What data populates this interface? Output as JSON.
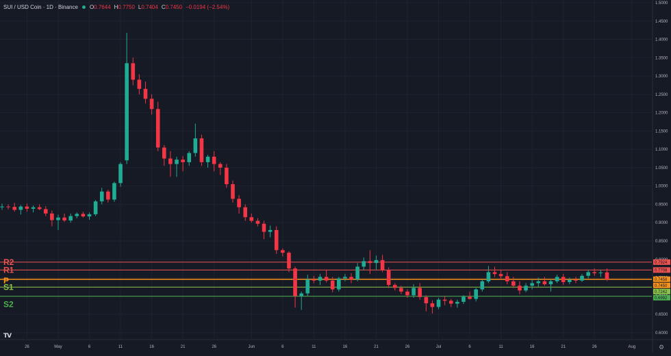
{
  "header": {
    "symbol": "SUI / USD Coin · 1D · Binance",
    "open_label": "O",
    "open": "0.7644",
    "high_label": "H",
    "high": "0.7750",
    "low_label": "L",
    "low": "0.7404",
    "close_label": "C",
    "close": "0.7450",
    "change": "−0.0194 (−2.54%)",
    "status_color": "#22ab94"
  },
  "colors": {
    "up": "#22ab94",
    "down": "#f23645",
    "background": "#161a25",
    "grid": "#1f2330",
    "axis_text": "#b2b5be"
  },
  "logo": {
    "text": "TV",
    "icon": "tradingview-logo-icon"
  },
  "settings_icon": "gear-icon",
  "chart_data": {
    "type": "candlestick",
    "y_axis": {
      "ticks": [
        "1.5000",
        "1.4500",
        "1.4000",
        "1.3500",
        "1.3000",
        "1.2500",
        "1.2000",
        "1.1500",
        "1.1000",
        "1.0500",
        "1.0000",
        "0.9500",
        "0.9000",
        "0.8500",
        "0.8000",
        "0.7500",
        "0.7000",
        "0.6500",
        "0.6000"
      ],
      "tick_values": [
        1.5,
        1.45,
        1.4,
        1.35,
        1.3,
        1.25,
        1.2,
        1.15,
        1.1,
        1.05,
        1.0,
        0.95,
        0.9,
        0.85,
        0.8,
        0.75,
        0.7,
        0.65,
        0.6
      ],
      "range": [
        0.596,
        1.5
      ],
      "side": "right"
    },
    "x_axis": {
      "ticks": [
        {
          "label": "26",
          "date": "2024-04-26"
        },
        {
          "label": "May",
          "date": "2024-05-01"
        },
        {
          "label": "6",
          "date": "2024-05-06"
        },
        {
          "label": "11",
          "date": "2024-05-11"
        },
        {
          "label": "16",
          "date": "2024-05-16"
        },
        {
          "label": "21",
          "date": "2024-05-21"
        },
        {
          "label": "26",
          "date": "2024-05-26"
        },
        {
          "label": "Jun",
          "date": "2024-06-01"
        },
        {
          "label": "6",
          "date": "2024-06-06"
        },
        {
          "label": "11",
          "date": "2024-06-11"
        },
        {
          "label": "16",
          "date": "2024-06-16"
        },
        {
          "label": "21",
          "date": "2024-06-21"
        },
        {
          "label": "26",
          "date": "2024-06-26"
        },
        {
          "label": "Jul",
          "date": "2024-07-01"
        },
        {
          "label": "6",
          "date": "2024-07-06"
        },
        {
          "label": "11",
          "date": "2024-07-11"
        },
        {
          "label": "16",
          "date": "2024-07-16"
        },
        {
          "label": "21",
          "date": "2024-07-21"
        },
        {
          "label": "26",
          "date": "2024-07-26"
        },
        {
          "label": "Aug",
          "date": "2024-08-01"
        }
      ],
      "range": [
        "2024-04-22",
        "2024-08-02"
      ]
    },
    "grid": true,
    "candles": [
      {
        "date": "2024-04-22",
        "o": 0.942,
        "h": 0.952,
        "l": 0.935,
        "c": 0.944
      },
      {
        "date": "2024-04-23",
        "o": 0.944,
        "h": 0.95,
        "l": 0.936,
        "c": 0.943
      },
      {
        "date": "2024-04-24",
        "o": 0.943,
        "h": 0.954,
        "l": 0.93,
        "c": 0.935
      },
      {
        "date": "2024-04-25",
        "o": 0.935,
        "h": 0.948,
        "l": 0.922,
        "c": 0.944
      },
      {
        "date": "2024-04-26",
        "o": 0.944,
        "h": 0.952,
        "l": 0.93,
        "c": 0.938
      },
      {
        "date": "2024-04-27",
        "o": 0.938,
        "h": 0.947,
        "l": 0.928,
        "c": 0.942
      },
      {
        "date": "2024-04-28",
        "o": 0.942,
        "h": 0.95,
        "l": 0.934,
        "c": 0.937
      },
      {
        "date": "2024-04-29",
        "o": 0.937,
        "h": 0.945,
        "l": 0.918,
        "c": 0.925
      },
      {
        "date": "2024-04-30",
        "o": 0.925,
        "h": 0.933,
        "l": 0.89,
        "c": 0.907
      },
      {
        "date": "2024-05-01",
        "o": 0.907,
        "h": 0.922,
        "l": 0.88,
        "c": 0.914
      },
      {
        "date": "2024-05-02",
        "o": 0.914,
        "h": 0.925,
        "l": 0.902,
        "c": 0.906
      },
      {
        "date": "2024-05-03",
        "o": 0.906,
        "h": 0.925,
        "l": 0.9,
        "c": 0.918
      },
      {
        "date": "2024-05-04",
        "o": 0.918,
        "h": 0.928,
        "l": 0.912,
        "c": 0.924
      },
      {
        "date": "2024-05-05",
        "o": 0.924,
        "h": 0.93,
        "l": 0.914,
        "c": 0.917
      },
      {
        "date": "2024-05-06",
        "o": 0.917,
        "h": 0.928,
        "l": 0.908,
        "c": 0.923
      },
      {
        "date": "2024-05-07",
        "o": 0.923,
        "h": 0.962,
        "l": 0.918,
        "c": 0.958
      },
      {
        "date": "2024-05-08",
        "o": 0.958,
        "h": 0.995,
        "l": 0.95,
        "c": 0.985
      },
      {
        "date": "2024-05-09",
        "o": 0.985,
        "h": 0.99,
        "l": 0.955,
        "c": 0.963
      },
      {
        "date": "2024-05-10",
        "o": 0.963,
        "h": 1.012,
        "l": 0.957,
        "c": 1.008
      },
      {
        "date": "2024-05-11",
        "o": 1.008,
        "h": 1.065,
        "l": 0.998,
        "c": 1.06
      },
      {
        "date": "2024-05-12",
        "o": 1.07,
        "h": 1.418,
        "l": 1.06,
        "c": 1.335
      },
      {
        "date": "2024-05-13",
        "o": 1.335,
        "h": 1.35,
        "l": 1.275,
        "c": 1.29
      },
      {
        "date": "2024-05-14",
        "o": 1.29,
        "h": 1.305,
        "l": 1.25,
        "c": 1.265
      },
      {
        "date": "2024-05-15",
        "o": 1.265,
        "h": 1.285,
        "l": 1.225,
        "c": 1.238
      },
      {
        "date": "2024-05-16",
        "o": 1.238,
        "h": 1.25,
        "l": 1.195,
        "c": 1.21
      },
      {
        "date": "2024-05-17",
        "o": 1.21,
        "h": 1.23,
        "l": 1.095,
        "c": 1.105
      },
      {
        "date": "2024-05-18",
        "o": 1.105,
        "h": 1.112,
        "l": 1.055,
        "c": 1.075
      },
      {
        "date": "2024-05-19",
        "o": 1.075,
        "h": 1.095,
        "l": 1.025,
        "c": 1.06
      },
      {
        "date": "2024-05-20",
        "o": 1.06,
        "h": 1.08,
        "l": 1.025,
        "c": 1.072
      },
      {
        "date": "2024-05-21",
        "o": 1.072,
        "h": 1.082,
        "l": 1.04,
        "c": 1.065
      },
      {
        "date": "2024-05-22",
        "o": 1.065,
        "h": 1.095,
        "l": 1.055,
        "c": 1.09
      },
      {
        "date": "2024-05-23",
        "o": 1.09,
        "h": 1.17,
        "l": 1.08,
        "c": 1.13
      },
      {
        "date": "2024-05-24",
        "o": 1.13,
        "h": 1.14,
        "l": 1.055,
        "c": 1.065
      },
      {
        "date": "2024-05-25",
        "o": 1.065,
        "h": 1.085,
        "l": 1.05,
        "c": 1.08
      },
      {
        "date": "2024-05-26",
        "o": 1.08,
        "h": 1.095,
        "l": 1.04,
        "c": 1.06
      },
      {
        "date": "2024-05-27",
        "o": 1.06,
        "h": 1.065,
        "l": 1.03,
        "c": 1.05
      },
      {
        "date": "2024-05-28",
        "o": 1.05,
        "h": 1.06,
        "l": 0.995,
        "c": 1.005
      },
      {
        "date": "2024-05-29",
        "o": 1.005,
        "h": 1.015,
        "l": 0.955,
        "c": 0.965
      },
      {
        "date": "2024-05-30",
        "o": 0.965,
        "h": 0.975,
        "l": 0.925,
        "c": 0.942
      },
      {
        "date": "2024-05-31",
        "o": 0.942,
        "h": 0.95,
        "l": 0.905,
        "c": 0.915
      },
      {
        "date": "2024-06-01",
        "o": 0.915,
        "h": 0.925,
        "l": 0.9,
        "c": 0.905
      },
      {
        "date": "2024-06-02",
        "o": 0.905,
        "h": 0.912,
        "l": 0.89,
        "c": 0.897
      },
      {
        "date": "2024-06-03",
        "o": 0.897,
        "h": 0.905,
        "l": 0.855,
        "c": 0.875
      },
      {
        "date": "2024-06-04",
        "o": 0.875,
        "h": 0.892,
        "l": 0.86,
        "c": 0.88
      },
      {
        "date": "2024-06-05",
        "o": 0.88,
        "h": 0.89,
        "l": 0.815,
        "c": 0.825
      },
      {
        "date": "2024-06-06",
        "o": 0.825,
        "h": 0.83,
        "l": 0.808,
        "c": 0.818
      },
      {
        "date": "2024-06-07",
        "o": 0.818,
        "h": 0.822,
        "l": 0.765,
        "c": 0.775
      },
      {
        "date": "2024-06-08",
        "o": 0.775,
        "h": 0.78,
        "l": 0.668,
        "c": 0.7
      },
      {
        "date": "2024-06-09",
        "o": 0.7,
        "h": 0.712,
        "l": 0.662,
        "c": 0.707
      },
      {
        "date": "2024-06-10",
        "o": 0.707,
        "h": 0.758,
        "l": 0.7,
        "c": 0.745
      },
      {
        "date": "2024-06-11",
        "o": 0.745,
        "h": 0.755,
        "l": 0.735,
        "c": 0.742
      },
      {
        "date": "2024-06-12",
        "o": 0.742,
        "h": 0.76,
        "l": 0.73,
        "c": 0.752
      },
      {
        "date": "2024-06-13",
        "o": 0.752,
        "h": 0.77,
        "l": 0.737,
        "c": 0.742
      },
      {
        "date": "2024-06-14",
        "o": 0.742,
        "h": 0.752,
        "l": 0.71,
        "c": 0.718
      },
      {
        "date": "2024-06-15",
        "o": 0.718,
        "h": 0.752,
        "l": 0.712,
        "c": 0.748
      },
      {
        "date": "2024-06-16",
        "o": 0.748,
        "h": 0.76,
        "l": 0.74,
        "c": 0.752
      },
      {
        "date": "2024-06-17",
        "o": 0.752,
        "h": 0.762,
        "l": 0.735,
        "c": 0.745
      },
      {
        "date": "2024-06-18",
        "o": 0.745,
        "h": 0.79,
        "l": 0.74,
        "c": 0.78
      },
      {
        "date": "2024-06-19",
        "o": 0.78,
        "h": 0.805,
        "l": 0.77,
        "c": 0.795
      },
      {
        "date": "2024-06-20",
        "o": 0.795,
        "h": 0.825,
        "l": 0.76,
        "c": 0.79
      },
      {
        "date": "2024-06-21",
        "o": 0.79,
        "h": 0.81,
        "l": 0.772,
        "c": 0.798
      },
      {
        "date": "2024-06-22",
        "o": 0.798,
        "h": 0.812,
        "l": 0.765,
        "c": 0.77
      },
      {
        "date": "2024-06-23",
        "o": 0.77,
        "h": 0.778,
        "l": 0.722,
        "c": 0.73
      },
      {
        "date": "2024-06-24",
        "o": 0.73,
        "h": 0.735,
        "l": 0.715,
        "c": 0.722
      },
      {
        "date": "2024-06-25",
        "o": 0.722,
        "h": 0.728,
        "l": 0.705,
        "c": 0.712
      },
      {
        "date": "2024-06-26",
        "o": 0.712,
        "h": 0.718,
        "l": 0.695,
        "c": 0.702
      },
      {
        "date": "2024-06-27",
        "o": 0.702,
        "h": 0.732,
        "l": 0.695,
        "c": 0.722
      },
      {
        "date": "2024-06-28",
        "o": 0.722,
        "h": 0.735,
        "l": 0.69,
        "c": 0.697
      },
      {
        "date": "2024-06-29",
        "o": 0.697,
        "h": 0.702,
        "l": 0.658,
        "c": 0.68
      },
      {
        "date": "2024-06-30",
        "o": 0.68,
        "h": 0.688,
        "l": 0.652,
        "c": 0.67
      },
      {
        "date": "2024-07-01",
        "o": 0.67,
        "h": 0.695,
        "l": 0.664,
        "c": 0.69
      },
      {
        "date": "2024-07-02",
        "o": 0.69,
        "h": 0.7,
        "l": 0.675,
        "c": 0.687
      },
      {
        "date": "2024-07-03",
        "o": 0.687,
        "h": 0.692,
        "l": 0.67,
        "c": 0.679
      },
      {
        "date": "2024-07-04",
        "o": 0.679,
        "h": 0.69,
        "l": 0.668,
        "c": 0.684
      },
      {
        "date": "2024-07-05",
        "o": 0.684,
        "h": 0.702,
        "l": 0.678,
        "c": 0.698
      },
      {
        "date": "2024-07-06",
        "o": 0.698,
        "h": 0.712,
        "l": 0.69,
        "c": 0.692
      },
      {
        "date": "2024-07-07",
        "o": 0.692,
        "h": 0.722,
        "l": 0.685,
        "c": 0.718
      },
      {
        "date": "2024-07-08",
        "o": 0.718,
        "h": 0.745,
        "l": 0.712,
        "c": 0.74
      },
      {
        "date": "2024-07-09",
        "o": 0.74,
        "h": 0.782,
        "l": 0.735,
        "c": 0.765
      },
      {
        "date": "2024-07-10",
        "o": 0.765,
        "h": 0.78,
        "l": 0.752,
        "c": 0.76
      },
      {
        "date": "2024-07-11",
        "o": 0.76,
        "h": 0.772,
        "l": 0.745,
        "c": 0.754
      },
      {
        "date": "2024-07-12",
        "o": 0.754,
        "h": 0.765,
        "l": 0.732,
        "c": 0.74
      },
      {
        "date": "2024-07-13",
        "o": 0.74,
        "h": 0.752,
        "l": 0.722,
        "c": 0.728
      },
      {
        "date": "2024-07-14",
        "o": 0.728,
        "h": 0.74,
        "l": 0.705,
        "c": 0.715
      },
      {
        "date": "2024-07-15",
        "o": 0.715,
        "h": 0.735,
        "l": 0.71,
        "c": 0.728
      },
      {
        "date": "2024-07-16",
        "o": 0.728,
        "h": 0.745,
        "l": 0.718,
        "c": 0.735
      },
      {
        "date": "2024-07-17",
        "o": 0.735,
        "h": 0.75,
        "l": 0.725,
        "c": 0.74
      },
      {
        "date": "2024-07-18",
        "o": 0.74,
        "h": 0.752,
        "l": 0.728,
        "c": 0.732
      },
      {
        "date": "2024-07-19",
        "o": 0.732,
        "h": 0.745,
        "l": 0.712,
        "c": 0.74
      },
      {
        "date": "2024-07-20",
        "o": 0.74,
        "h": 0.758,
        "l": 0.735,
        "c": 0.752
      },
      {
        "date": "2024-07-21",
        "o": 0.752,
        "h": 0.76,
        "l": 0.73,
        "c": 0.738
      },
      {
        "date": "2024-07-22",
        "o": 0.738,
        "h": 0.75,
        "l": 0.732,
        "c": 0.744
      },
      {
        "date": "2024-07-23",
        "o": 0.744,
        "h": 0.752,
        "l": 0.735,
        "c": 0.742
      },
      {
        "date": "2024-07-24",
        "o": 0.742,
        "h": 0.76,
        "l": 0.738,
        "c": 0.755
      },
      {
        "date": "2024-07-25",
        "o": 0.755,
        "h": 0.772,
        "l": 0.748,
        "c": 0.765
      },
      {
        "date": "2024-07-26",
        "o": 0.765,
        "h": 0.775,
        "l": 0.755,
        "c": 0.762
      },
      {
        "date": "2024-07-27",
        "o": 0.762,
        "h": 0.772,
        "l": 0.752,
        "c": 0.764
      },
      {
        "date": "2024-07-28",
        "o": 0.7644,
        "h": 0.775,
        "l": 0.7404,
        "c": 0.745
      }
    ],
    "pivots": [
      {
        "label": "R2",
        "value": 0.7924,
        "value_text": "0.7924",
        "color": "#ef5350"
      },
      {
        "label": "R1",
        "value": 0.7708,
        "value_text": "0.7708",
        "color": "#ef5350"
      },
      {
        "label": "",
        "value": 0.7458,
        "value_text": "0.7458",
        "color": "#f7931a"
      },
      {
        "label": "P",
        "value": 0.745,
        "value_text": "0.7450",
        "color": "#f7931a"
      },
      {
        "label": "S1",
        "value": 0.7242,
        "value_text": "0.7242",
        "color": "#8bc34a"
      },
      {
        "label": "S2",
        "value": 0.6992,
        "value_text": "0.6992",
        "color": "#4caf50"
      }
    ]
  }
}
